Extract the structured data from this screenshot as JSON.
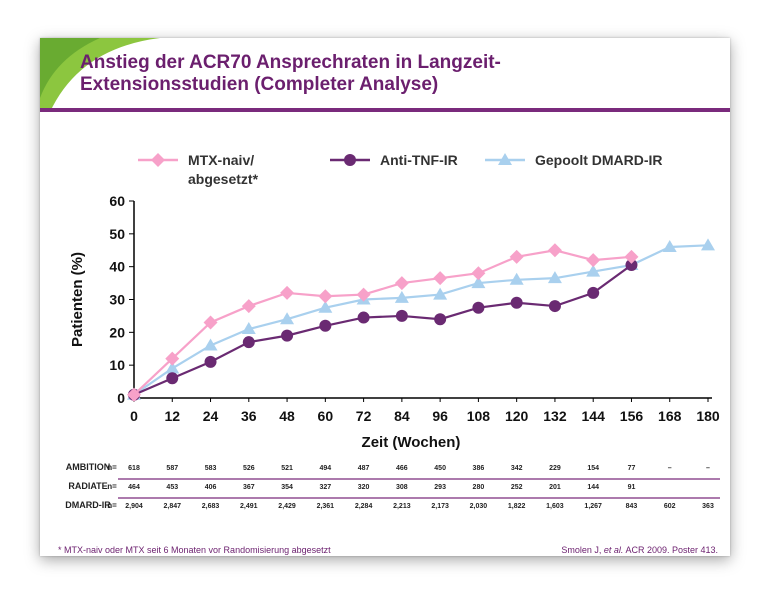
{
  "slide": {
    "title": "Anstieg der ACR70 Ansprechraten in Langzeit-\nExtensionsstudien (Completer Analyse)",
    "footnote": "* MTX-naiv oder MTX seit 6 Monaten vor Randomisierung abgesetzt",
    "citation_author": "Smolen J, ",
    "citation_etal": "et al.",
    "citation_rest": " ACR 2009. Poster 413."
  },
  "colors": {
    "accent_purple": "#7a2a7c",
    "title_purple": "#6b1f6e",
    "header_green": "#8cc63f",
    "mtx_pink": "#f7a1c9",
    "tnf_purple": "#6a2a72",
    "dmard_blue": "#a9d0ee"
  },
  "chart_data": {
    "type": "line",
    "xlabel": "Zeit (Wochen)",
    "ylabel": "Patienten (%)",
    "x": [
      0,
      12,
      24,
      36,
      48,
      60,
      72,
      84,
      96,
      108,
      120,
      132,
      144,
      156,
      168,
      180
    ],
    "xlim": [
      0,
      180
    ],
    "ylim": [
      0,
      60
    ],
    "yticks": [
      0,
      10,
      20,
      30,
      40,
      50,
      60
    ],
    "legend_position": "top",
    "grid": false,
    "series": [
      {
        "name": "MTX-naiv/\nabgesetzt*",
        "marker": "diamond",
        "x": [
          0,
          12,
          24,
          36,
          48,
          60,
          72,
          84,
          96,
          108,
          120,
          132,
          144,
          156
        ],
        "values": [
          1,
          12,
          23,
          28,
          32,
          31,
          31.5,
          35,
          36.5,
          38,
          43,
          45,
          42,
          43
        ]
      },
      {
        "name": "Anti-TNF-IR",
        "marker": "circle",
        "x": [
          0,
          12,
          24,
          36,
          48,
          60,
          72,
          84,
          96,
          108,
          120,
          132,
          144,
          156
        ],
        "values": [
          1,
          6,
          11,
          17,
          19,
          22,
          24.5,
          25,
          24,
          27.5,
          29,
          28,
          32,
          40.5
        ]
      },
      {
        "name": "Gepoolt DMARD-IR",
        "marker": "triangle",
        "x": [
          0,
          12,
          24,
          36,
          48,
          60,
          72,
          84,
          96,
          108,
          120,
          132,
          144,
          156,
          168,
          180
        ],
        "values": [
          1,
          9,
          16,
          21,
          24,
          27.5,
          30,
          30.5,
          31.5,
          35,
          36,
          36.5,
          38.5,
          40.5,
          46,
          46.5
        ]
      }
    ],
    "table": {
      "n_label": "n=",
      "rows": [
        {
          "label": "AMBITION",
          "values": [
            "618",
            "587",
            "583",
            "526",
            "521",
            "494",
            "487",
            "466",
            "450",
            "386",
            "342",
            "229",
            "154",
            "77",
            "–",
            "–"
          ]
        },
        {
          "label": "RADIATE",
          "values": [
            "464",
            "453",
            "406",
            "367",
            "354",
            "327",
            "320",
            "308",
            "293",
            "280",
            "252",
            "201",
            "144",
            "91",
            "",
            ""
          ]
        },
        {
          "label": "DMARD-IR",
          "values": [
            "2,904",
            "2,847",
            "2,683",
            "2,491",
            "2,429",
            "2,361",
            "2,284",
            "2,213",
            "2,173",
            "2,030",
            "1,822",
            "1,603",
            "1,267",
            "843",
            "602",
            "363"
          ]
        }
      ]
    }
  }
}
